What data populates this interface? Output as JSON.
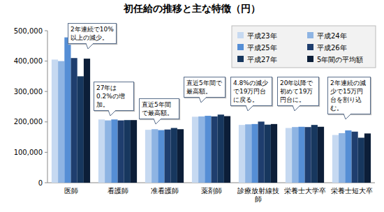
{
  "chart_data": {
    "type": "bar",
    "title": "初任給の推移と主な特徴（円）",
    "categories": [
      "医師",
      "看護師",
      "准看護師",
      "薬剤師",
      "診療放射線技師",
      "栄養士大学卒",
      "栄養士短大卒"
    ],
    "series": [
      {
        "name": "平成23年",
        "color": "#c6d9f1",
        "values": [
          405000,
          208000,
          174000,
          217000,
          190000,
          180000,
          157000
        ]
      },
      {
        "name": "平成24年",
        "color": "#8eb4e3",
        "values": [
          400000,
          205000,
          176000,
          218000,
          192000,
          183000,
          163000
        ]
      },
      {
        "name": "平成25年",
        "color": "#558ed5",
        "values": [
          478000,
          208000,
          173000,
          220000,
          193000,
          184000,
          172000
        ]
      },
      {
        "name": "平成26年",
        "color": "#1f3e6e",
        "values": [
          410000,
          205000,
          175000,
          218000,
          201000,
          183000,
          168000
        ]
      },
      {
        "name": "平成27年",
        "color": "#17375e",
        "values": [
          350000,
          206000,
          180000,
          224000,
          191000,
          190000,
          148000
        ]
      },
      {
        "name": "5年間の平均額",
        "color": "#0c1e38",
        "values": [
          408000,
          206000,
          176000,
          219000,
          193000,
          184000,
          162000
        ]
      }
    ],
    "annotations": [
      "2年連続で10%以上の減少。",
      "27年は0.2%の増加。",
      "直近5年間で最高額。",
      "直近5年間で最高額。",
      "4.8%の減少で19万円台に戻る。",
      "20年以降で初めて19万円台に。",
      "2年連続の減少で15万円台を割り込む。"
    ],
    "ylim": [
      0,
      500000
    ],
    "yticks": [
      0,
      {
        "value": 100000,
        "label": "100,000"
      },
      {
        "value": 200000,
        "label": "200,000"
      },
      {
        "value": 300000,
        "label": "300,000"
      },
      {
        "value": 400000,
        "label": "400,000"
      },
      {
        "value": 500000,
        "label": "500,000"
      }
    ],
    "grid": false,
    "legend": "top-right"
  }
}
